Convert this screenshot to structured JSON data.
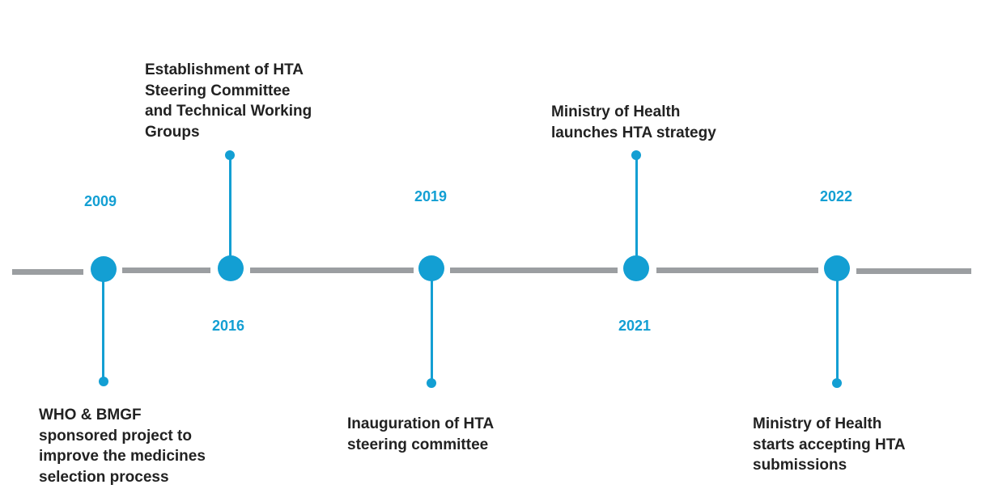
{
  "colors": {
    "accent": "#139fd3",
    "line": "#9b9ea1",
    "text": "#222222"
  },
  "events": [
    {
      "year": "2009",
      "description": "WHO & BMGF\nsponsored project to\nimprove the medicines\nselection process"
    },
    {
      "year": "2016",
      "description": "Establishment of HTA\nSteering Committee\nand Technical Working\nGroups"
    },
    {
      "year": "2019",
      "description": "Inauguration of HTA\nsteering committee"
    },
    {
      "year": "2021",
      "description": "Ministry  of Health\nlaunches HTA strategy"
    },
    {
      "year": "2022",
      "description": "Ministry  of Health\nstarts accepting HTA\nsubmissions"
    }
  ]
}
